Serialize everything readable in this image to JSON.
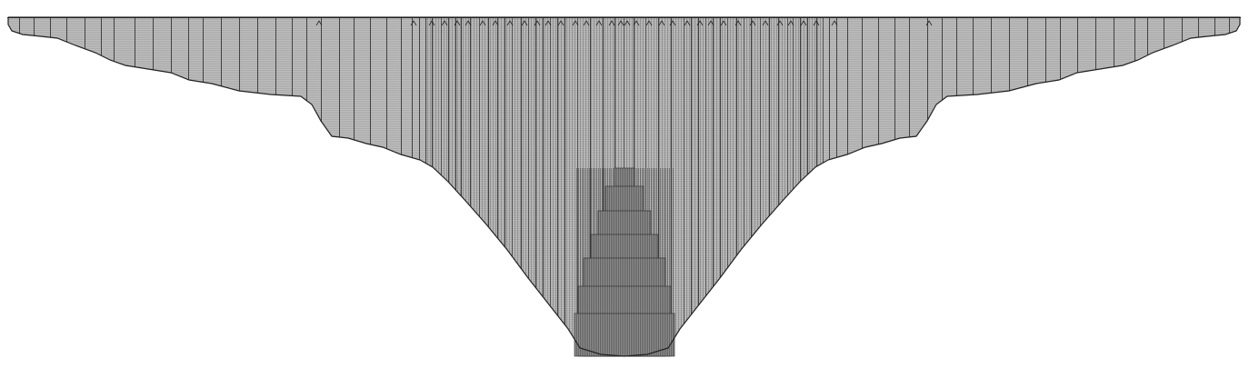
{
  "figure": {
    "background_color": "#ffffff",
    "fill_color": "#bdbdbd",
    "line_color": "#222222",
    "dense_line_color": "#111111"
  }
}
